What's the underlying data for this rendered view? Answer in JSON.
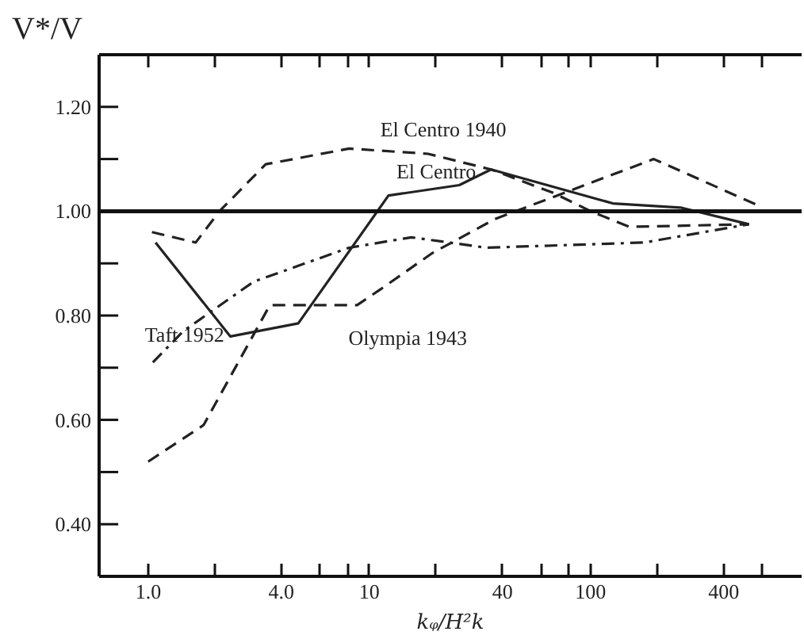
{
  "chart_data": {
    "type": "line",
    "xlabel": "kᵩ/H²k",
    "ylabel": "V*/V",
    "log": "x",
    "xlim": [
      0.6,
      900
    ],
    "ylim": [
      0.3,
      1.3
    ],
    "xticks": [
      {
        "value": 1,
        "label": "1.0"
      },
      {
        "value": 2,
        "label": null
      },
      {
        "value": 4,
        "label": "4.0"
      },
      {
        "value": 6,
        "label": null
      },
      {
        "value": 8,
        "label": null
      },
      10,
      {
        "value": 20,
        "label": null
      },
      40,
      {
        "value": 60,
        "label": null
      },
      {
        "value": 80,
        "label": null
      },
      100,
      {
        "value": 200,
        "label": null
      },
      400,
      {
        "value": 600,
        "label": null
      }
    ],
    "yticks": [
      {
        "value": 0.4,
        "label": "0.40"
      },
      {
        "value": 0.5,
        "label": null
      },
      {
        "value": 0.6,
        "label": "0.60"
      },
      {
        "value": 0.7,
        "label": null
      },
      {
        "value": 0.8,
        "label": "0.80"
      },
      {
        "value": 0.9,
        "label": null
      },
      {
        "value": 1.0,
        "label": "1.00"
      },
      {
        "value": 1.1,
        "label": null
      },
      {
        "value": 1.2,
        "label": "1.20"
      }
    ],
    "grid": false,
    "marker": "none",
    "ref_lines": [
      {
        "axis": "y",
        "value": 1.0,
        "color": "#111111",
        "line_style": "solid"
      }
    ],
    "series": [
      {
        "name": "El Centro 1940",
        "color": "#222222",
        "line_style": "dashed",
        "x": [
          1.04,
          1.64,
          2.1,
          3.4,
          8.1,
          18.4,
          35.5,
          68,
          100,
          150,
          520
        ],
        "values": [
          0.96,
          0.94,
          1.0,
          1.09,
          1.12,
          1.11,
          1.08,
          1.035,
          1.0,
          0.97,
          0.975
        ]
      },
      {
        "name": "El Centro",
        "color": "#222222",
        "line_style": "solid",
        "x": [
          1.08,
          2.35,
          4.77,
          12.2,
          25.5,
          35.5,
          126,
          255,
          520
        ],
        "values": [
          0.94,
          0.76,
          0.785,
          1.03,
          1.05,
          1.08,
          1.015,
          1.007,
          0.975
        ]
      },
      {
        "name": "Taft 1952",
        "color": "#222222",
        "line_style": "dashdot",
        "x": [
          1.05,
          1.44,
          3.0,
          8.1,
          15.5,
          33.8,
          175,
          520
        ],
        "values": [
          0.71,
          0.77,
          0.865,
          0.93,
          0.95,
          0.93,
          0.94,
          0.975
        ]
      },
      {
        "name": "Olympia 1943",
        "color": "#222222",
        "line_style": "dashed",
        "x": [
          1.0,
          1.78,
          3.55,
          8.8,
          11.2,
          19.3,
          37,
          193,
          580
        ],
        "values": [
          0.52,
          0.59,
          0.82,
          0.82,
          0.85,
          0.92,
          0.985,
          1.1,
          1.01
        ]
      }
    ]
  }
}
